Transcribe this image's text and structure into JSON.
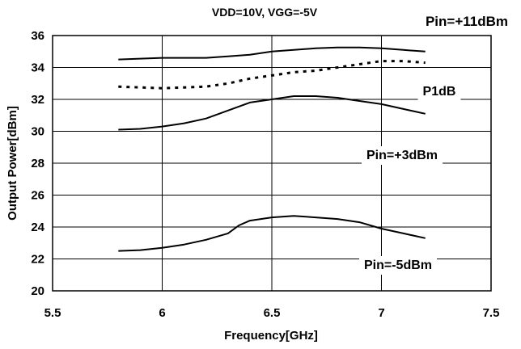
{
  "chart_data": {
    "type": "line",
    "title": "VDD=10V, VGG=-5V",
    "xlabel": "Frequency[GHz]",
    "ylabel": "Output Power[dBm]",
    "xlim": [
      5.5,
      7.5
    ],
    "ylim": [
      20,
      36
    ],
    "xticks": [
      "5.5",
      "6",
      "6.5",
      "7",
      "7.5"
    ],
    "yticks": [
      "20",
      "22",
      "24",
      "26",
      "28",
      "30",
      "32",
      "34",
      "36"
    ],
    "grid": true,
    "series": [
      {
        "name": "Pin=+11dBm",
        "style": "solid",
        "x": [
          5.8,
          5.9,
          6.0,
          6.1,
          6.2,
          6.3,
          6.4,
          6.5,
          6.6,
          6.7,
          6.8,
          6.9,
          7.0,
          7.1,
          7.2
        ],
        "y": [
          34.5,
          34.55,
          34.6,
          34.6,
          34.6,
          34.7,
          34.8,
          35.0,
          35.1,
          35.2,
          35.25,
          35.25,
          35.2,
          35.1,
          35.0
        ]
      },
      {
        "name": "P1dB",
        "style": "dashed",
        "x": [
          5.8,
          5.9,
          6.0,
          6.1,
          6.2,
          6.3,
          6.4,
          6.5,
          6.6,
          6.7,
          6.8,
          6.9,
          7.0,
          7.1,
          7.2
        ],
        "y": [
          32.8,
          32.75,
          32.7,
          32.75,
          32.8,
          33.0,
          33.3,
          33.5,
          33.7,
          33.8,
          34.0,
          34.2,
          34.4,
          34.4,
          34.3
        ]
      },
      {
        "name": "Pin=+3dBm",
        "style": "solid",
        "x": [
          5.8,
          5.9,
          6.0,
          6.1,
          6.2,
          6.3,
          6.4,
          6.5,
          6.6,
          6.7,
          6.8,
          6.9,
          7.0,
          7.1,
          7.2
        ],
        "y": [
          30.1,
          30.15,
          30.3,
          30.5,
          30.8,
          31.3,
          31.8,
          32.0,
          32.2,
          32.2,
          32.1,
          31.9,
          31.7,
          31.4,
          31.1
        ]
      },
      {
        "name": "Pin=-5dBm",
        "style": "solid",
        "x": [
          5.8,
          5.9,
          6.0,
          6.1,
          6.2,
          6.3,
          6.35,
          6.4,
          6.5,
          6.6,
          6.7,
          6.8,
          6.9,
          7.0,
          7.1,
          7.2
        ],
        "y": [
          22.5,
          22.55,
          22.7,
          22.9,
          23.2,
          23.6,
          24.1,
          24.4,
          24.6,
          24.7,
          24.6,
          24.5,
          24.3,
          23.9,
          23.6,
          23.3
        ]
      }
    ],
    "annotations": [
      {
        "text": "Pin=+11dBm",
        "series": "Pin=+11dBm"
      },
      {
        "text": "P1dB",
        "series": "P1dB"
      },
      {
        "text": "Pin=+3dBm",
        "series": "Pin=+3dBm"
      },
      {
        "text": "Pin=-5dBm",
        "series": "Pin=-5dBm"
      }
    ],
    "colors": {
      "line": "#000000",
      "grid": "#000000",
      "background": "#ffffff"
    }
  }
}
